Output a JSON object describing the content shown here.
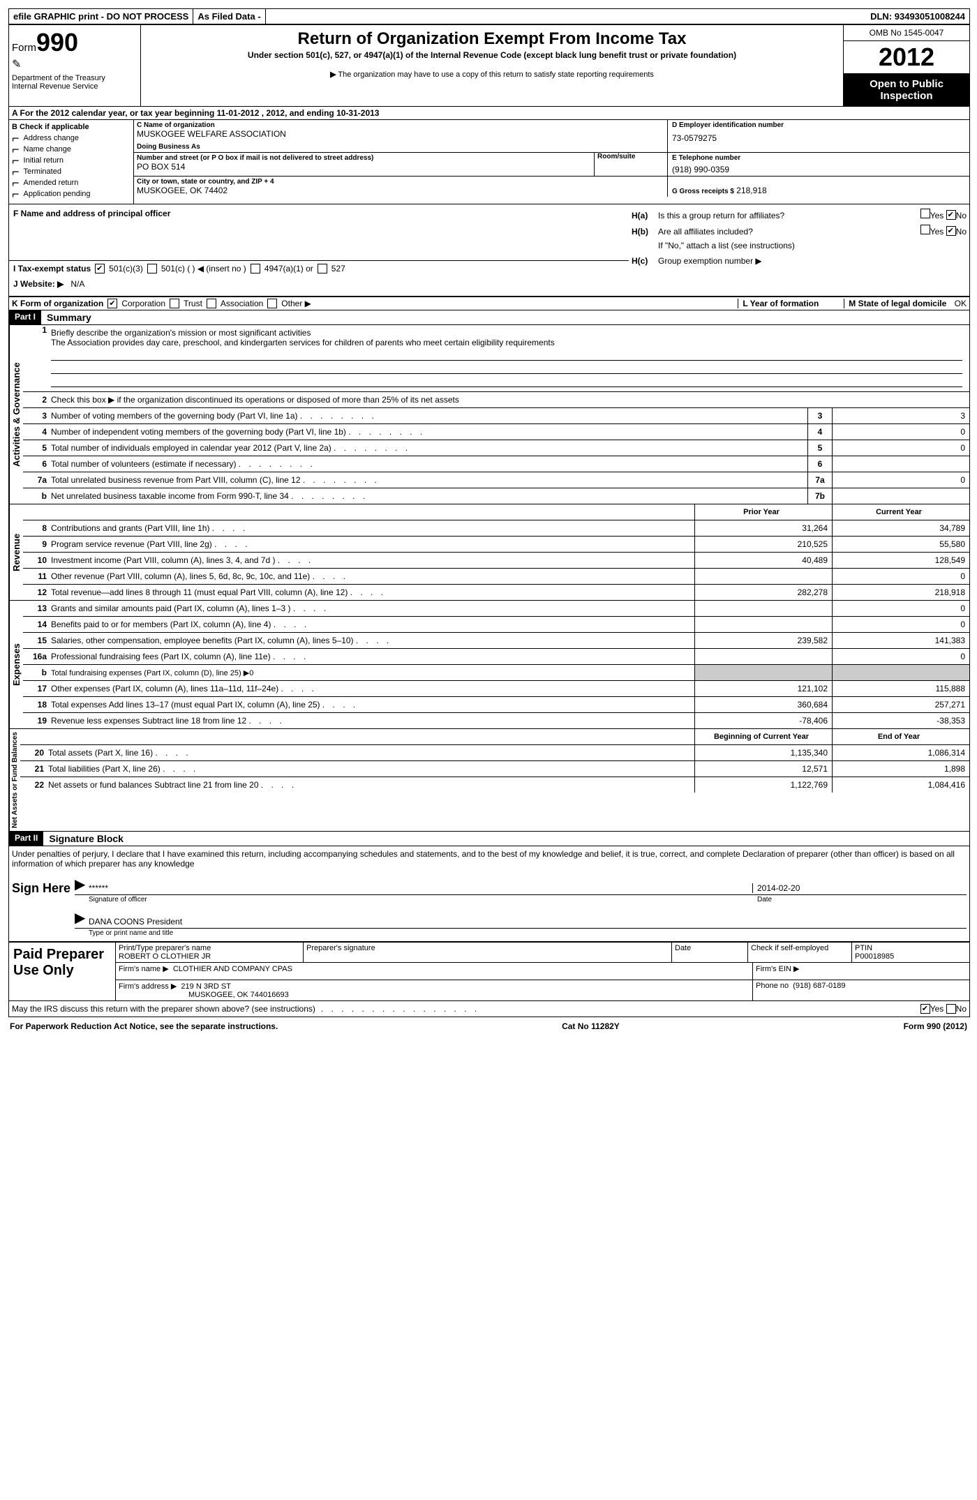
{
  "top_bar": {
    "efile": "efile GRAPHIC print - DO NOT PROCESS",
    "as_filed": "As Filed Data -",
    "dln_label": "DLN:",
    "dln": "93493051008244"
  },
  "header": {
    "form_label": "Form",
    "form_number": "990",
    "dept": "Department of the Treasury",
    "irs": "Internal Revenue Service",
    "title": "Return of Organization Exempt From Income Tax",
    "subtitle": "Under section 501(c), 527, or 4947(a)(1) of the Internal Revenue Code (except black lung benefit trust or private foundation)",
    "note_arrow": "▶",
    "note": "The organization may have to use a copy of this return to satisfy state reporting requirements",
    "omb": "OMB No 1545-0047",
    "year": "2012",
    "open": "Open to Public Inspection"
  },
  "row_a": "A For the 2012 calendar year, or tax year beginning 11-01-2012    , 2012, and ending 10-31-2013",
  "section_b": {
    "label": "B Check if applicable",
    "items": [
      "Address change",
      "Name change",
      "Initial return",
      "Terminated",
      "Amended return",
      "Application pending"
    ]
  },
  "section_c": {
    "name_label": "C Name of organization",
    "name": "MUSKOGEE WELFARE ASSOCIATION",
    "dba_label": "Doing Business As",
    "dba": "",
    "street_label": "Number and street (or P O  box if mail is not delivered to street address)",
    "room_label": "Room/suite",
    "street": "PO BOX 514",
    "city_label": "City or town, state or country, and ZIP + 4",
    "city": "MUSKOGEE, OK  74402"
  },
  "section_d": {
    "label": "D Employer identification number",
    "value": "73-0579275"
  },
  "section_e": {
    "label": "E Telephone number",
    "value": "(918) 990-0359"
  },
  "section_g": {
    "label": "G Gross receipts $",
    "value": "218,918"
  },
  "section_f": {
    "label": "F   Name and address of principal officer"
  },
  "section_h": {
    "ha_label": "H(a)",
    "ha_text": "Is this a group return for affiliates?",
    "hb_label": "H(b)",
    "hb_text": "Are all affiliates included?",
    "hb_note": "If \"No,\" attach a list  (see instructions)",
    "hc_label": "H(c)",
    "hc_text": "Group exemption number ▶",
    "yes": "Yes",
    "no": "No"
  },
  "row_i": {
    "label": "I   Tax-exempt status",
    "opts": [
      "501(c)(3)",
      "501(c) (   ) ◀ (insert no )",
      "4947(a)(1) or",
      "527"
    ]
  },
  "row_j": {
    "label": "J  Website: ▶",
    "value": "N/A"
  },
  "row_k": {
    "label": "K Form of organization",
    "opts": [
      "Corporation",
      "Trust",
      "Association",
      "Other ▶"
    ],
    "l_label": "L Year of formation",
    "m_label": "M State of legal domicile",
    "m_value": "OK"
  },
  "part1": {
    "header": "Part I",
    "title": "Summary",
    "side_ag": "Activities & Governance",
    "mission_label": "Briefly describe the organization's mission or most significant activities",
    "mission": "The Association provides day care, preschool, and kindergarten services for children of parents who meet certain eligibility requirements",
    "line2": "Check this box ▶    if the organization discontinued its operations or disposed of more than 25% of its net assets",
    "lines_gov": [
      {
        "n": "3",
        "t": "Number of voting members of the governing body (Part VI, line 1a)",
        "box": "3",
        "v": "3"
      },
      {
        "n": "4",
        "t": "Number of independent voting members of the governing body (Part VI, line 1b)",
        "box": "4",
        "v": "0"
      },
      {
        "n": "5",
        "t": "Total number of individuals employed in calendar year 2012 (Part V, line 2a)",
        "box": "5",
        "v": "0"
      },
      {
        "n": "6",
        "t": "Total number of volunteers (estimate if necessary)",
        "box": "6",
        "v": ""
      },
      {
        "n": "7a",
        "t": "Total unrelated business revenue from Part VIII, column (C), line 12",
        "box": "7a",
        "v": "0"
      },
      {
        "n": "b",
        "t": "Net unrelated business taxable income from Form 990-T, line 34",
        "box": "7b",
        "v": ""
      }
    ],
    "col_prior": "Prior Year",
    "col_current": "Current Year",
    "side_rev": "Revenue",
    "lines_rev": [
      {
        "n": "8",
        "t": "Contributions and grants (Part VIII, line 1h)",
        "p": "31,264",
        "c": "34,789"
      },
      {
        "n": "9",
        "t": "Program service revenue (Part VIII, line 2g)",
        "p": "210,525",
        "c": "55,580"
      },
      {
        "n": "10",
        "t": "Investment income (Part VIII, column (A), lines 3, 4, and 7d )",
        "p": "40,489",
        "c": "128,549"
      },
      {
        "n": "11",
        "t": "Other revenue (Part VIII, column (A), lines 5, 6d, 8c, 9c, 10c, and 11e)",
        "p": "",
        "c": "0"
      },
      {
        "n": "12",
        "t": "Total revenue—add lines 8 through 11 (must equal Part VIII, column (A), line 12)",
        "p": "282,278",
        "c": "218,918"
      }
    ],
    "side_exp": "Expenses",
    "lines_exp": [
      {
        "n": "13",
        "t": "Grants and similar amounts paid (Part IX, column (A), lines 1–3 )",
        "p": "",
        "c": "0"
      },
      {
        "n": "14",
        "t": "Benefits paid to or for members (Part IX, column (A), line 4)",
        "p": "",
        "c": "0"
      },
      {
        "n": "15",
        "t": "Salaries, other compensation, employee benefits (Part IX, column (A), lines 5–10)",
        "p": "239,582",
        "c": "141,383"
      },
      {
        "n": "16a",
        "t": "Professional fundraising fees (Part IX, column (A), line 11e)",
        "p": "",
        "c": "0"
      },
      {
        "n": "b",
        "t": "Total fundraising expenses (Part IX, column (D), line 25)  ▶0",
        "p": "SHADE",
        "c": "SHADE"
      },
      {
        "n": "17",
        "t": "Other expenses (Part IX, column (A), lines 11a–11d, 11f–24e)",
        "p": "121,102",
        "c": "115,888"
      },
      {
        "n": "18",
        "t": "Total expenses  Add lines 13–17 (must equal Part IX, column (A), line 25)",
        "p": "360,684",
        "c": "257,271"
      },
      {
        "n": "19",
        "t": "Revenue less expenses  Subtract line 18 from line 12",
        "p": "-78,406",
        "c": "-38,353"
      }
    ],
    "col_beg": "Beginning of Current Year",
    "col_end": "End of Year",
    "side_na": "Net Assets or Fund Balances",
    "lines_na": [
      {
        "n": "20",
        "t": "Total assets (Part X, line 16)",
        "p": "1,135,340",
        "c": "1,086,314"
      },
      {
        "n": "21",
        "t": "Total liabilities (Part X, line 26)",
        "p": "12,571",
        "c": "1,898"
      },
      {
        "n": "22",
        "t": "Net assets or fund balances  Subtract line 21 from line 20",
        "p": "1,122,769",
        "c": "1,084,416"
      }
    ]
  },
  "part2": {
    "header": "Part II",
    "title": "Signature Block",
    "declaration": "Under penalties of perjury, I declare that I have examined this return, including accompanying schedules and statements, and to the best of my knowledge and belief, it is true, correct, and complete  Declaration of preparer (other than officer) is based on all information of which preparer has any knowledge",
    "sign_here": "Sign Here",
    "sig_stars": "******",
    "sig_date": "2014-02-20",
    "sig_officer_label": "Signature of officer",
    "date_label": "Date",
    "officer_name": "DANA COONS President",
    "officer_name_label": "Type or print name and title",
    "paid": "Paid Preparer Use Only",
    "prep_name_label": "Print/Type preparer's name",
    "prep_name": "ROBERT O CLOTHIER JR",
    "prep_sig_label": "Preparer's signature",
    "prep_date_label": "Date",
    "self_emp": "Check     if self-employed",
    "ptin_label": "PTIN",
    "ptin": "P00018985",
    "firm_name_label": "Firm's name   ▶",
    "firm_name": "CLOTHIER AND COMPANY CPAS",
    "firm_ein_label": "Firm's EIN ▶",
    "firm_addr_label": "Firm's address ▶",
    "firm_addr1": "219 N 3RD ST",
    "firm_addr2": "MUSKOGEE, OK  744016693",
    "phone_label": "Phone no",
    "phone": "(918) 687-0189",
    "discuss": "May the IRS discuss this return with the preparer shown above? (see instructions)"
  },
  "footer": {
    "pra": "For Paperwork Reduction Act Notice, see the separate instructions.",
    "cat": "Cat No 11282Y",
    "form": "Form 990 (2012)"
  },
  "colors": {
    "black": "#000000",
    "white": "#ffffff",
    "shade": "#cccccc"
  }
}
